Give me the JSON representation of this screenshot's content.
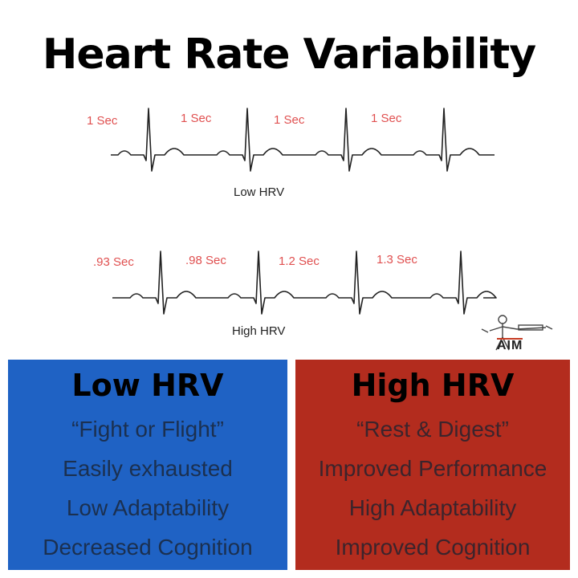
{
  "title": "Heart Rate Variability",
  "strips": {
    "low": {
      "label": "Low HRV",
      "intervals": [
        "1 Sec",
        "1 Sec",
        "1 Sec",
        "1 Sec"
      ]
    },
    "high": {
      "label": "High HRV",
      "intervals": [
        ".93 Sec",
        ".98 Sec",
        "1.2 Sec",
        "1.3 Sec"
      ]
    }
  },
  "logo": {
    "text": "AIM"
  },
  "panels": {
    "low": {
      "heading": "Low HRV",
      "color": "#1f62c4",
      "lines": [
        "“Fight or Flight”",
        "Easily exhausted",
        "Low Adaptability",
        "Decreased Cognition"
      ]
    },
    "high": {
      "heading": "High HRV",
      "color": "#b32c1e",
      "lines": [
        "“Rest & Digest”",
        "Improved Performance",
        "High Adaptability",
        "Improved Cognition"
      ]
    }
  },
  "colors": {
    "interval_text": "#e05050",
    "trace": "#222222"
  }
}
